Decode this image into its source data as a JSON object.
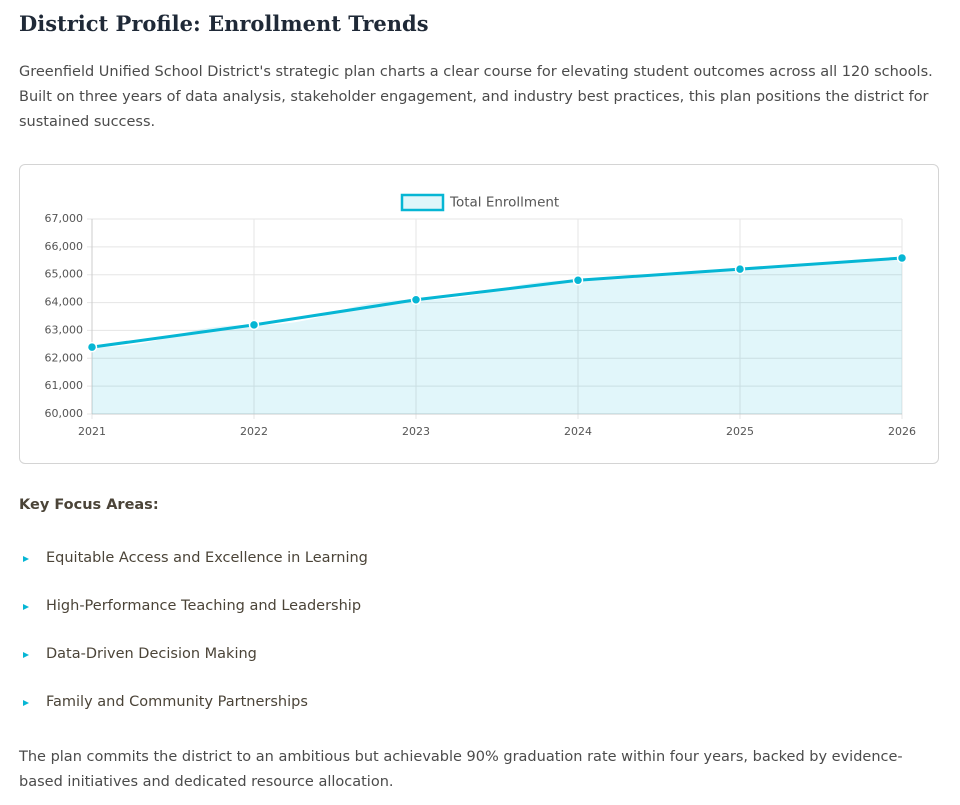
{
  "header": {
    "title": "District Profile: Enrollment Trends"
  },
  "intro": "Greenfield Unified School District's strategic plan charts a clear course for elevating student outcomes across all 120 schools. Built on three years of data analysis, stakeholder engagement, and industry best practices, this plan positions the district for sustained success.",
  "chart_data": {
    "type": "area",
    "categories": [
      "2021",
      "2022",
      "2023",
      "2024",
      "2025",
      "2026"
    ],
    "series": [
      {
        "name": "Total Enrollment",
        "color": "#06b6d4",
        "values": [
          62400,
          63200,
          64100,
          64800,
          65200,
          65600
        ]
      }
    ],
    "ylim": [
      60000,
      67000
    ],
    "yticks": [
      {
        "value": 60000,
        "label": "60,000"
      },
      {
        "value": 61000,
        "label": "61,000"
      },
      {
        "value": 62000,
        "label": "62,000"
      },
      {
        "value": 63000,
        "label": "63,000"
      },
      {
        "value": 64000,
        "label": "64,000"
      },
      {
        "value": 65000,
        "label": "65,000"
      },
      {
        "value": 66000,
        "label": "66,000"
      },
      {
        "value": 67000,
        "label": "67,000"
      }
    ],
    "grid": true,
    "legend": "top"
  },
  "focus": {
    "heading": "Key Focus Areas:",
    "items": [
      "Equitable Access and Excellence in Learning",
      "High-Performance Teaching and Leadership",
      "Data-Driven Decision Making",
      "Family and Community Partnerships"
    ]
  },
  "closing": "The plan commits the district to an ambitious but achievable 90% graduation rate within four years, backed by evidence-based initiatives and dedicated resource allocation."
}
